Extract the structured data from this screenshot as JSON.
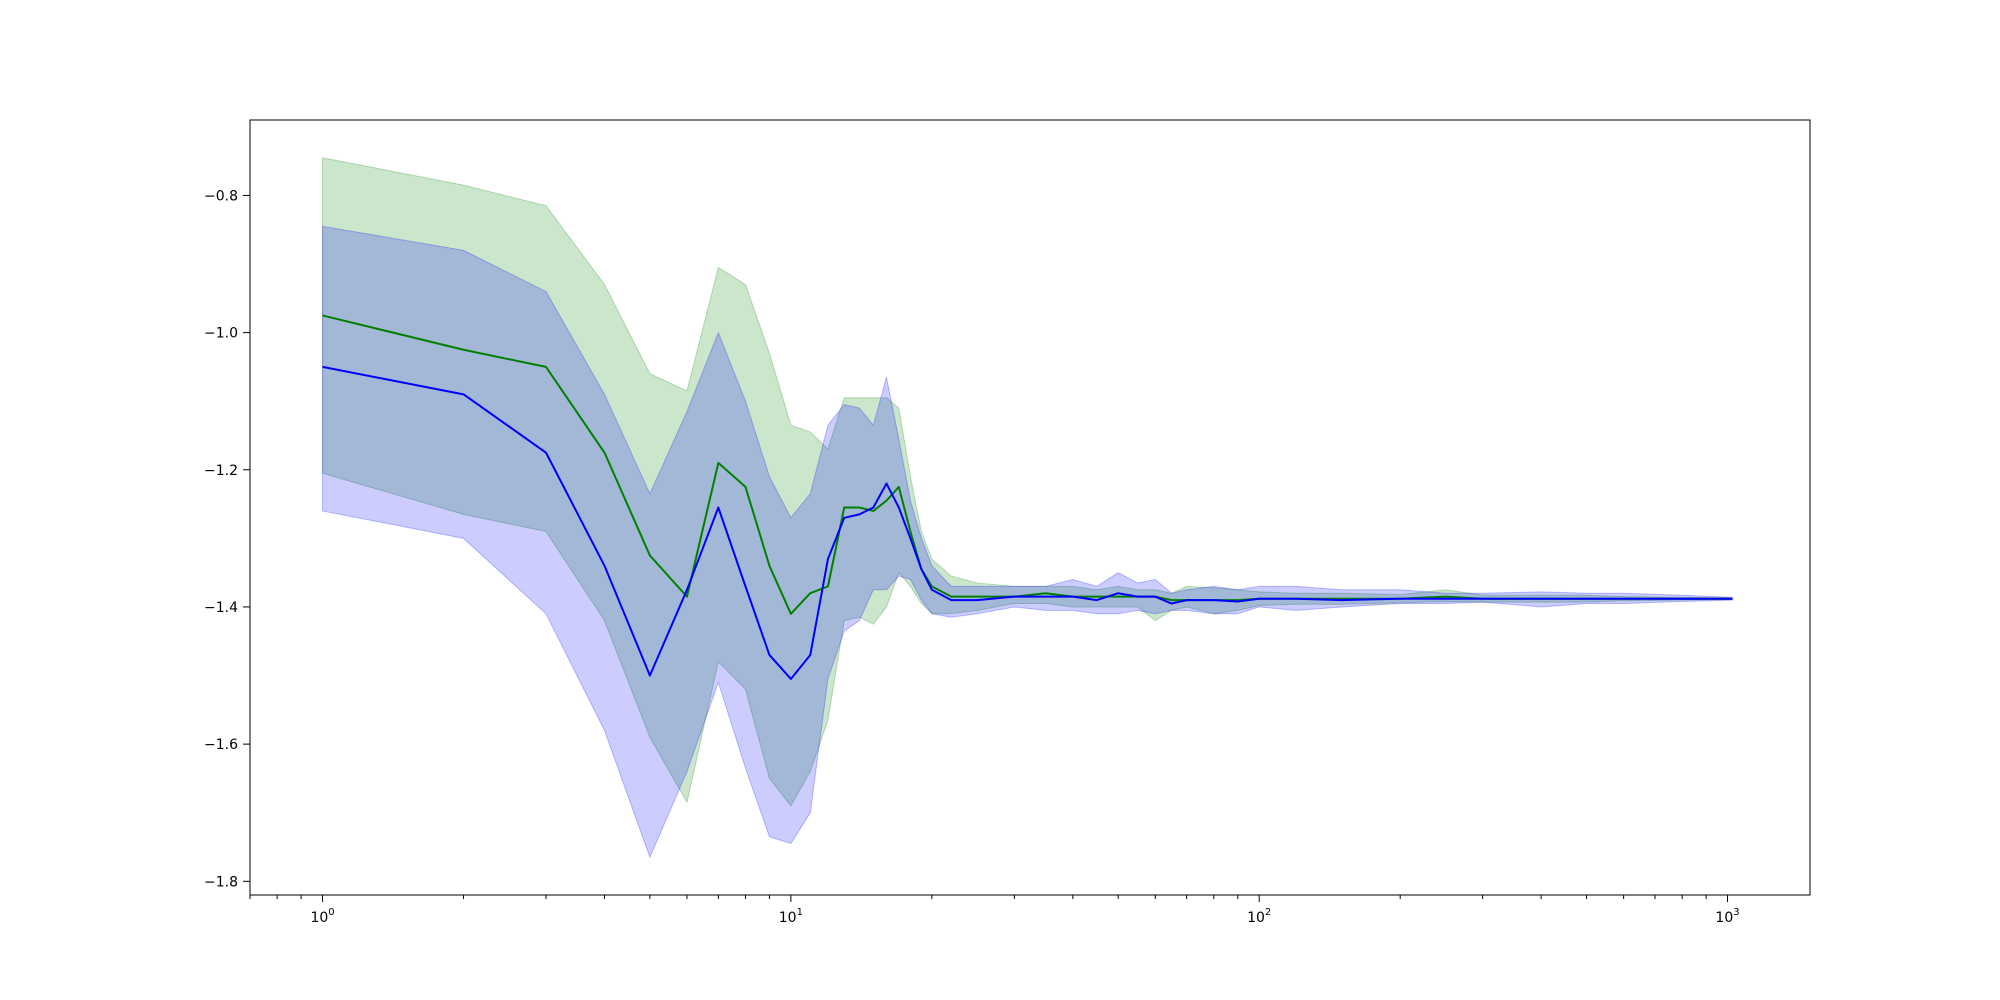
{
  "chart_data": {
    "type": "line",
    "title": "",
    "xlabel": "",
    "ylabel": "",
    "xscale": "log",
    "xlim": [
      0.7,
      1500
    ],
    "ylim": [
      -1.82,
      -0.69
    ],
    "grid": false,
    "legend": "none",
    "x_ticks": [
      {
        "base": "10",
        "exp": "0",
        "value": 1
      },
      {
        "base": "10",
        "exp": "1",
        "value": 10
      },
      {
        "base": "10",
        "exp": "2",
        "value": 100
      },
      {
        "base": "10",
        "exp": "3",
        "value": 1000
      }
    ],
    "y_ticks": [
      {
        "label": "−0.8",
        "value": -0.8
      },
      {
        "label": "−1.0",
        "value": -1.0
      },
      {
        "label": "−1.2",
        "value": -1.2
      },
      {
        "label": "−1.4",
        "value": -1.4
      },
      {
        "label": "−1.6",
        "value": -1.6
      },
      {
        "label": "−1.8",
        "value": -1.8
      }
    ],
    "series": [
      {
        "color": "#008000",
        "band_color": "#008000",
        "band_opacity": 0.2,
        "x": [
          1,
          2,
          3,
          4,
          5,
          6,
          7,
          8,
          9,
          10,
          11,
          12,
          13,
          14,
          15,
          16,
          17,
          18,
          19,
          20,
          22,
          25,
          30,
          35,
          40,
          45,
          50,
          55,
          60,
          65,
          70,
          80,
          90,
          100,
          120,
          150,
          200,
          250,
          300,
          400,
          500,
          600,
          800,
          1024
        ],
        "y": [
          -0.975,
          -1.025,
          -1.05,
          -1.175,
          -1.325,
          -1.385,
          -1.19,
          -1.225,
          -1.34,
          -1.41,
          -1.38,
          -1.37,
          -1.255,
          -1.255,
          -1.26,
          -1.245,
          -1.225,
          -1.29,
          -1.345,
          -1.37,
          -1.385,
          -1.385,
          -1.385,
          -1.38,
          -1.385,
          -1.385,
          -1.385,
          -1.385,
          -1.385,
          -1.39,
          -1.39,
          -1.39,
          -1.39,
          -1.388,
          -1.388,
          -1.388,
          -1.388,
          -1.385,
          -1.388,
          -1.388,
          -1.388,
          -1.388,
          -1.388,
          -1.388
        ],
        "upper": [
          -0.745,
          -0.785,
          -0.815,
          -0.93,
          -1.06,
          -1.085,
          -0.905,
          -0.93,
          -1.03,
          -1.135,
          -1.145,
          -1.17,
          -1.095,
          -1.095,
          -1.095,
          -1.095,
          -1.11,
          -1.21,
          -1.29,
          -1.33,
          -1.355,
          -1.365,
          -1.37,
          -1.37,
          -1.37,
          -1.375,
          -1.37,
          -1.375,
          -1.375,
          -1.38,
          -1.37,
          -1.372,
          -1.375,
          -1.378,
          -1.38,
          -1.38,
          -1.382,
          -1.375,
          -1.383,
          -1.383,
          -1.383,
          -1.385,
          -1.386,
          -1.387
        ],
        "lower": [
          -1.205,
          -1.265,
          -1.29,
          -1.42,
          -1.59,
          -1.685,
          -1.48,
          -1.52,
          -1.65,
          -1.69,
          -1.64,
          -1.565,
          -1.42,
          -1.415,
          -1.425,
          -1.4,
          -1.35,
          -1.37,
          -1.395,
          -1.41,
          -1.41,
          -1.405,
          -1.395,
          -1.395,
          -1.4,
          -1.4,
          -1.4,
          -1.4,
          -1.42,
          -1.405,
          -1.4,
          -1.41,
          -1.405,
          -1.398,
          -1.396,
          -1.396,
          -1.394,
          -1.392,
          -1.393,
          -1.393,
          -1.393,
          -1.391,
          -1.39,
          -1.389
        ]
      },
      {
        "color": "#0000ff",
        "band_color": "#0000ff",
        "band_opacity": 0.2,
        "x": [
          1,
          2,
          3,
          4,
          5,
          6,
          7,
          8,
          9,
          10,
          11,
          12,
          13,
          14,
          15,
          16,
          17,
          18,
          19,
          20,
          22,
          25,
          30,
          35,
          40,
          45,
          50,
          55,
          60,
          65,
          70,
          80,
          90,
          100,
          120,
          150,
          200,
          250,
          300,
          400,
          500,
          600,
          800,
          1024
        ],
        "y": [
          -1.05,
          -1.09,
          -1.175,
          -1.34,
          -1.5,
          -1.375,
          -1.255,
          -1.37,
          -1.47,
          -1.505,
          -1.47,
          -1.33,
          -1.27,
          -1.265,
          -1.255,
          -1.22,
          -1.255,
          -1.3,
          -1.345,
          -1.375,
          -1.39,
          -1.39,
          -1.385,
          -1.385,
          -1.385,
          -1.39,
          -1.38,
          -1.385,
          -1.385,
          -1.395,
          -1.39,
          -1.39,
          -1.392,
          -1.388,
          -1.388,
          -1.39,
          -1.388,
          -1.388,
          -1.388,
          -1.388,
          -1.388,
          -1.388,
          -1.388,
          -1.388
        ],
        "upper": [
          -0.845,
          -0.88,
          -0.94,
          -1.09,
          -1.235,
          -1.115,
          -1.0,
          -1.1,
          -1.21,
          -1.27,
          -1.235,
          -1.135,
          -1.105,
          -1.11,
          -1.135,
          -1.065,
          -1.155,
          -1.245,
          -1.3,
          -1.34,
          -1.37,
          -1.37,
          -1.37,
          -1.37,
          -1.36,
          -1.37,
          -1.35,
          -1.365,
          -1.36,
          -1.38,
          -1.375,
          -1.37,
          -1.375,
          -1.37,
          -1.37,
          -1.375,
          -1.375,
          -1.38,
          -1.38,
          -1.378,
          -1.38,
          -1.38,
          -1.383,
          -1.386
        ],
        "lower": [
          -1.26,
          -1.3,
          -1.41,
          -1.58,
          -1.765,
          -1.64,
          -1.51,
          -1.635,
          -1.735,
          -1.745,
          -1.7,
          -1.505,
          -1.435,
          -1.42,
          -1.375,
          -1.375,
          -1.355,
          -1.36,
          -1.39,
          -1.41,
          -1.415,
          -1.41,
          -1.4,
          -1.405,
          -1.405,
          -1.41,
          -1.41,
          -1.405,
          -1.41,
          -1.405,
          -1.405,
          -1.41,
          -1.41,
          -1.4,
          -1.405,
          -1.4,
          -1.395,
          -1.395,
          -1.393,
          -1.4,
          -1.395,
          -1.395,
          -1.392,
          -1.39
        ]
      }
    ]
  }
}
